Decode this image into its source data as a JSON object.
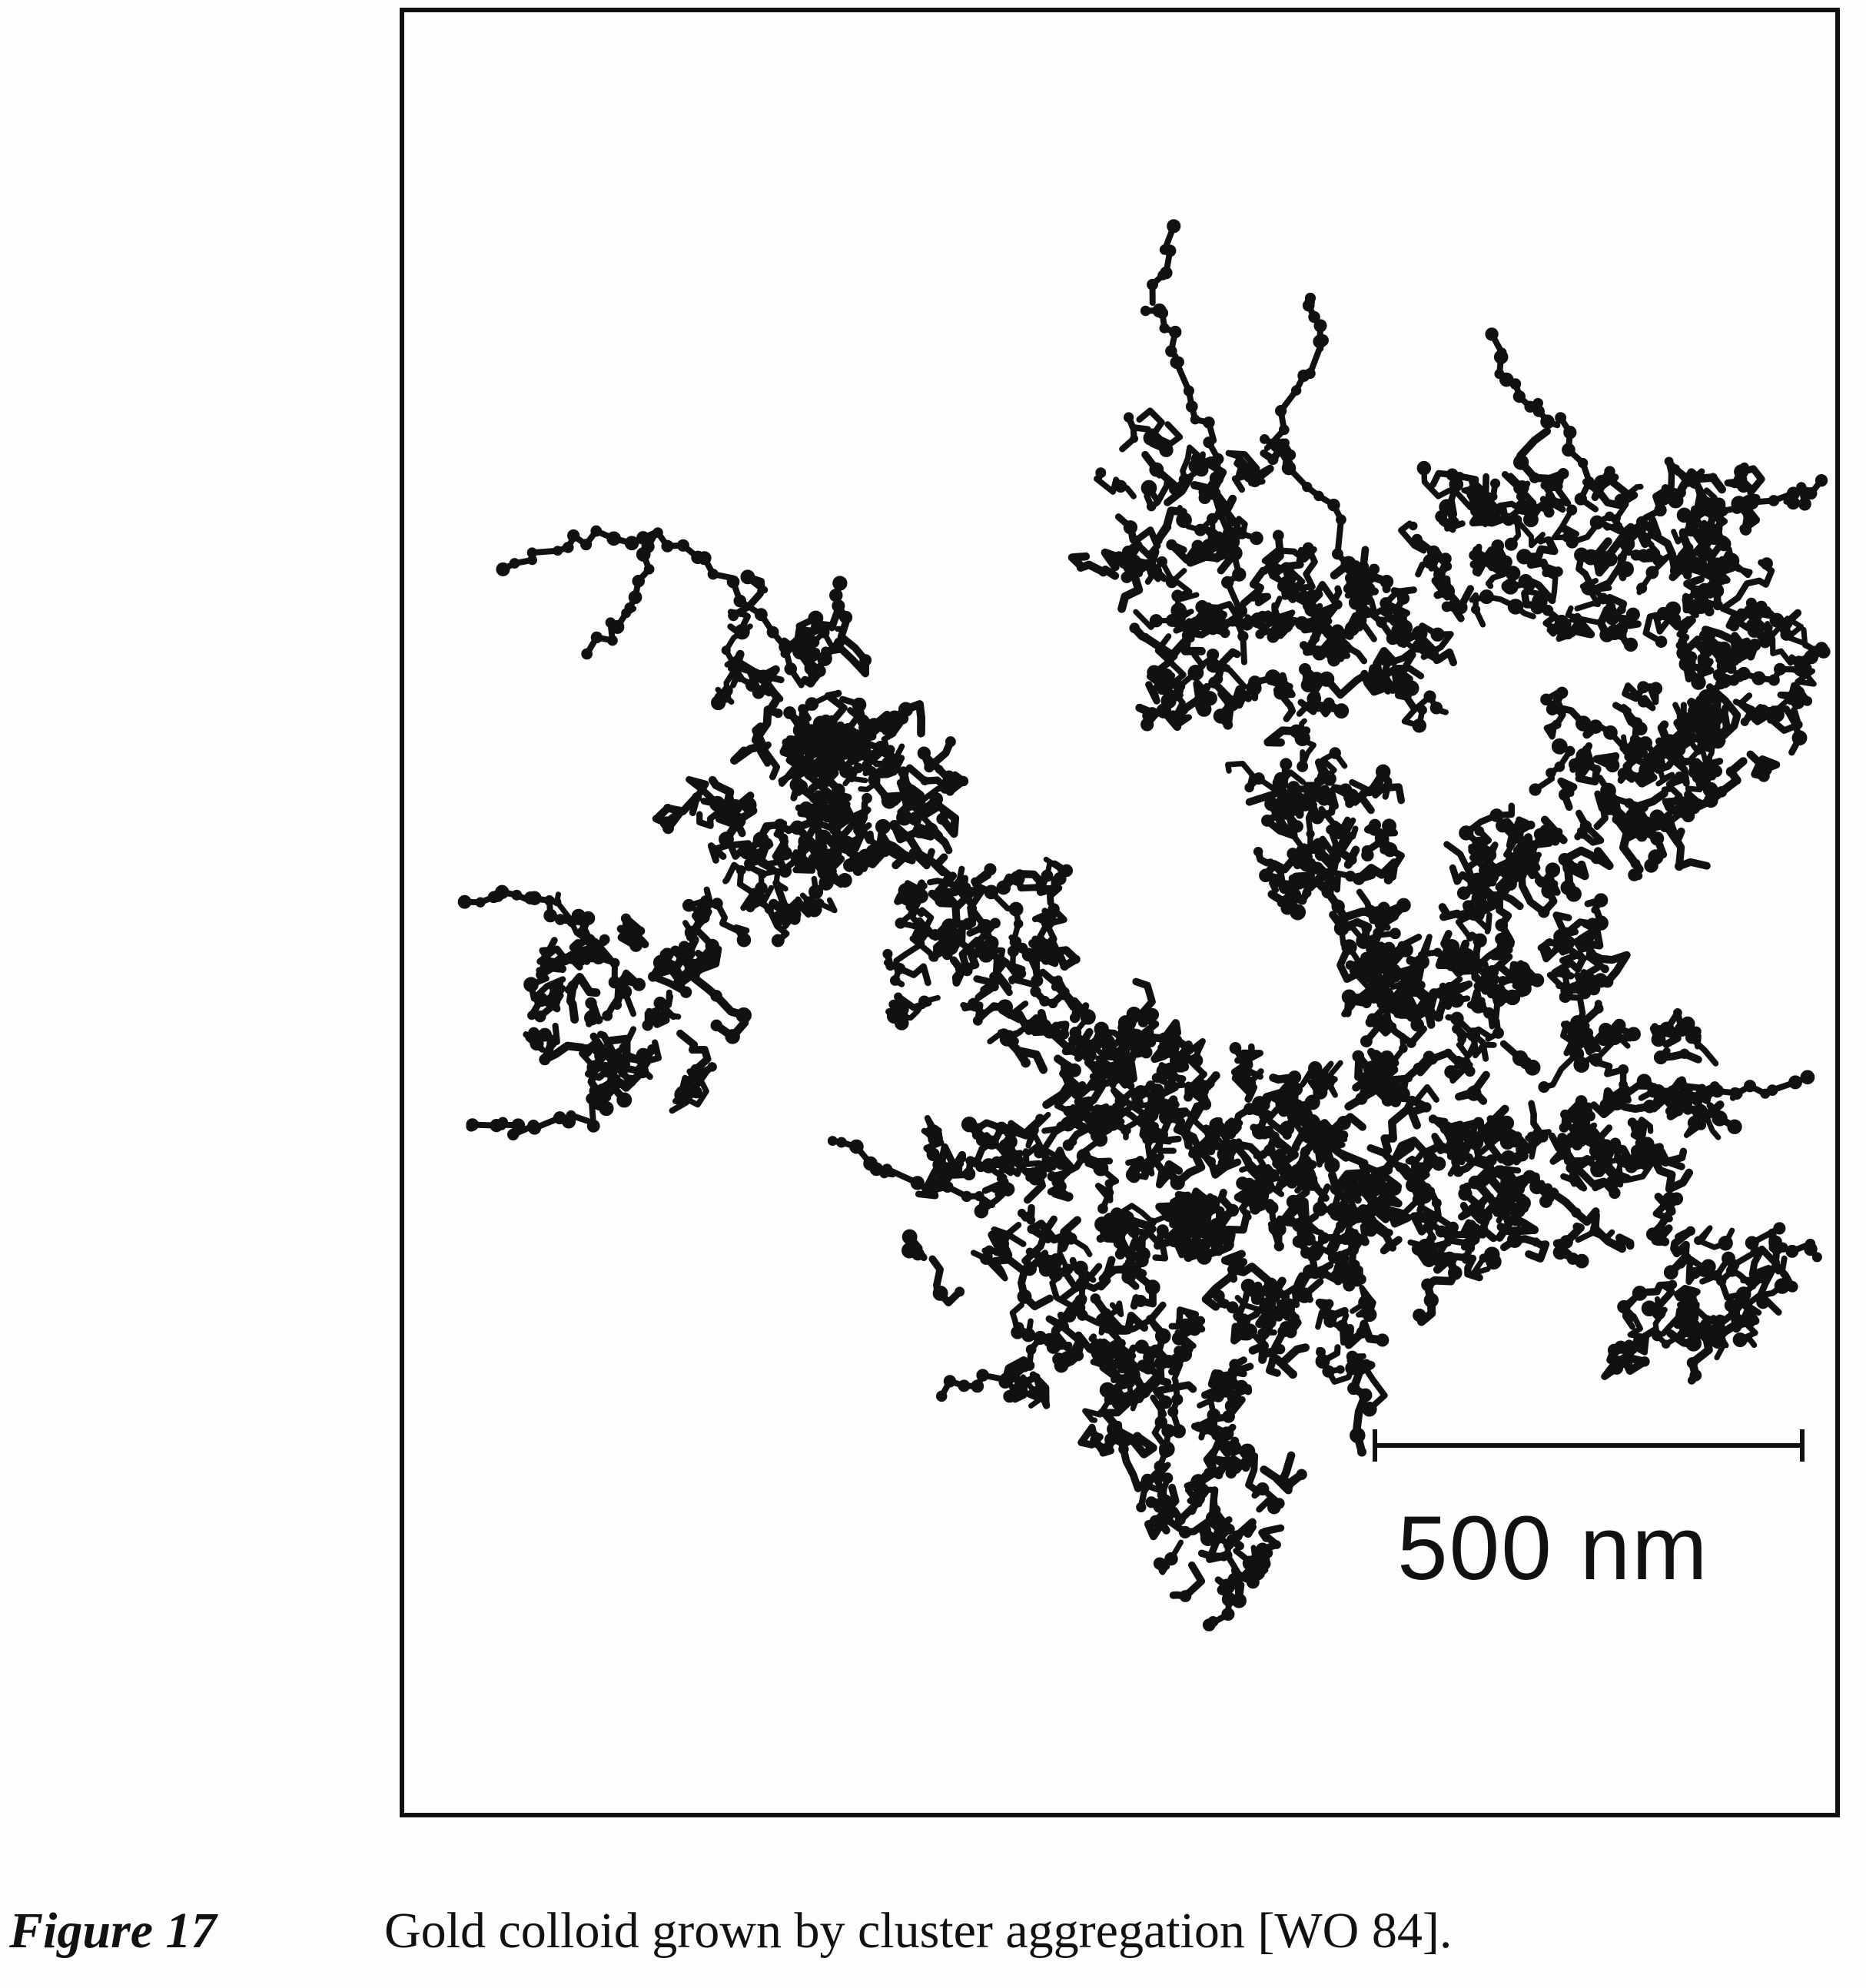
{
  "figure": {
    "scale_bar_label": "500 nm",
    "cluster_color": "#111111",
    "frame_color": "#111111",
    "background_color": "#fdfdfb"
  },
  "caption": {
    "label": "Figure 17",
    "text": "Gold colloid grown by cluster aggregation [WO 84]."
  }
}
